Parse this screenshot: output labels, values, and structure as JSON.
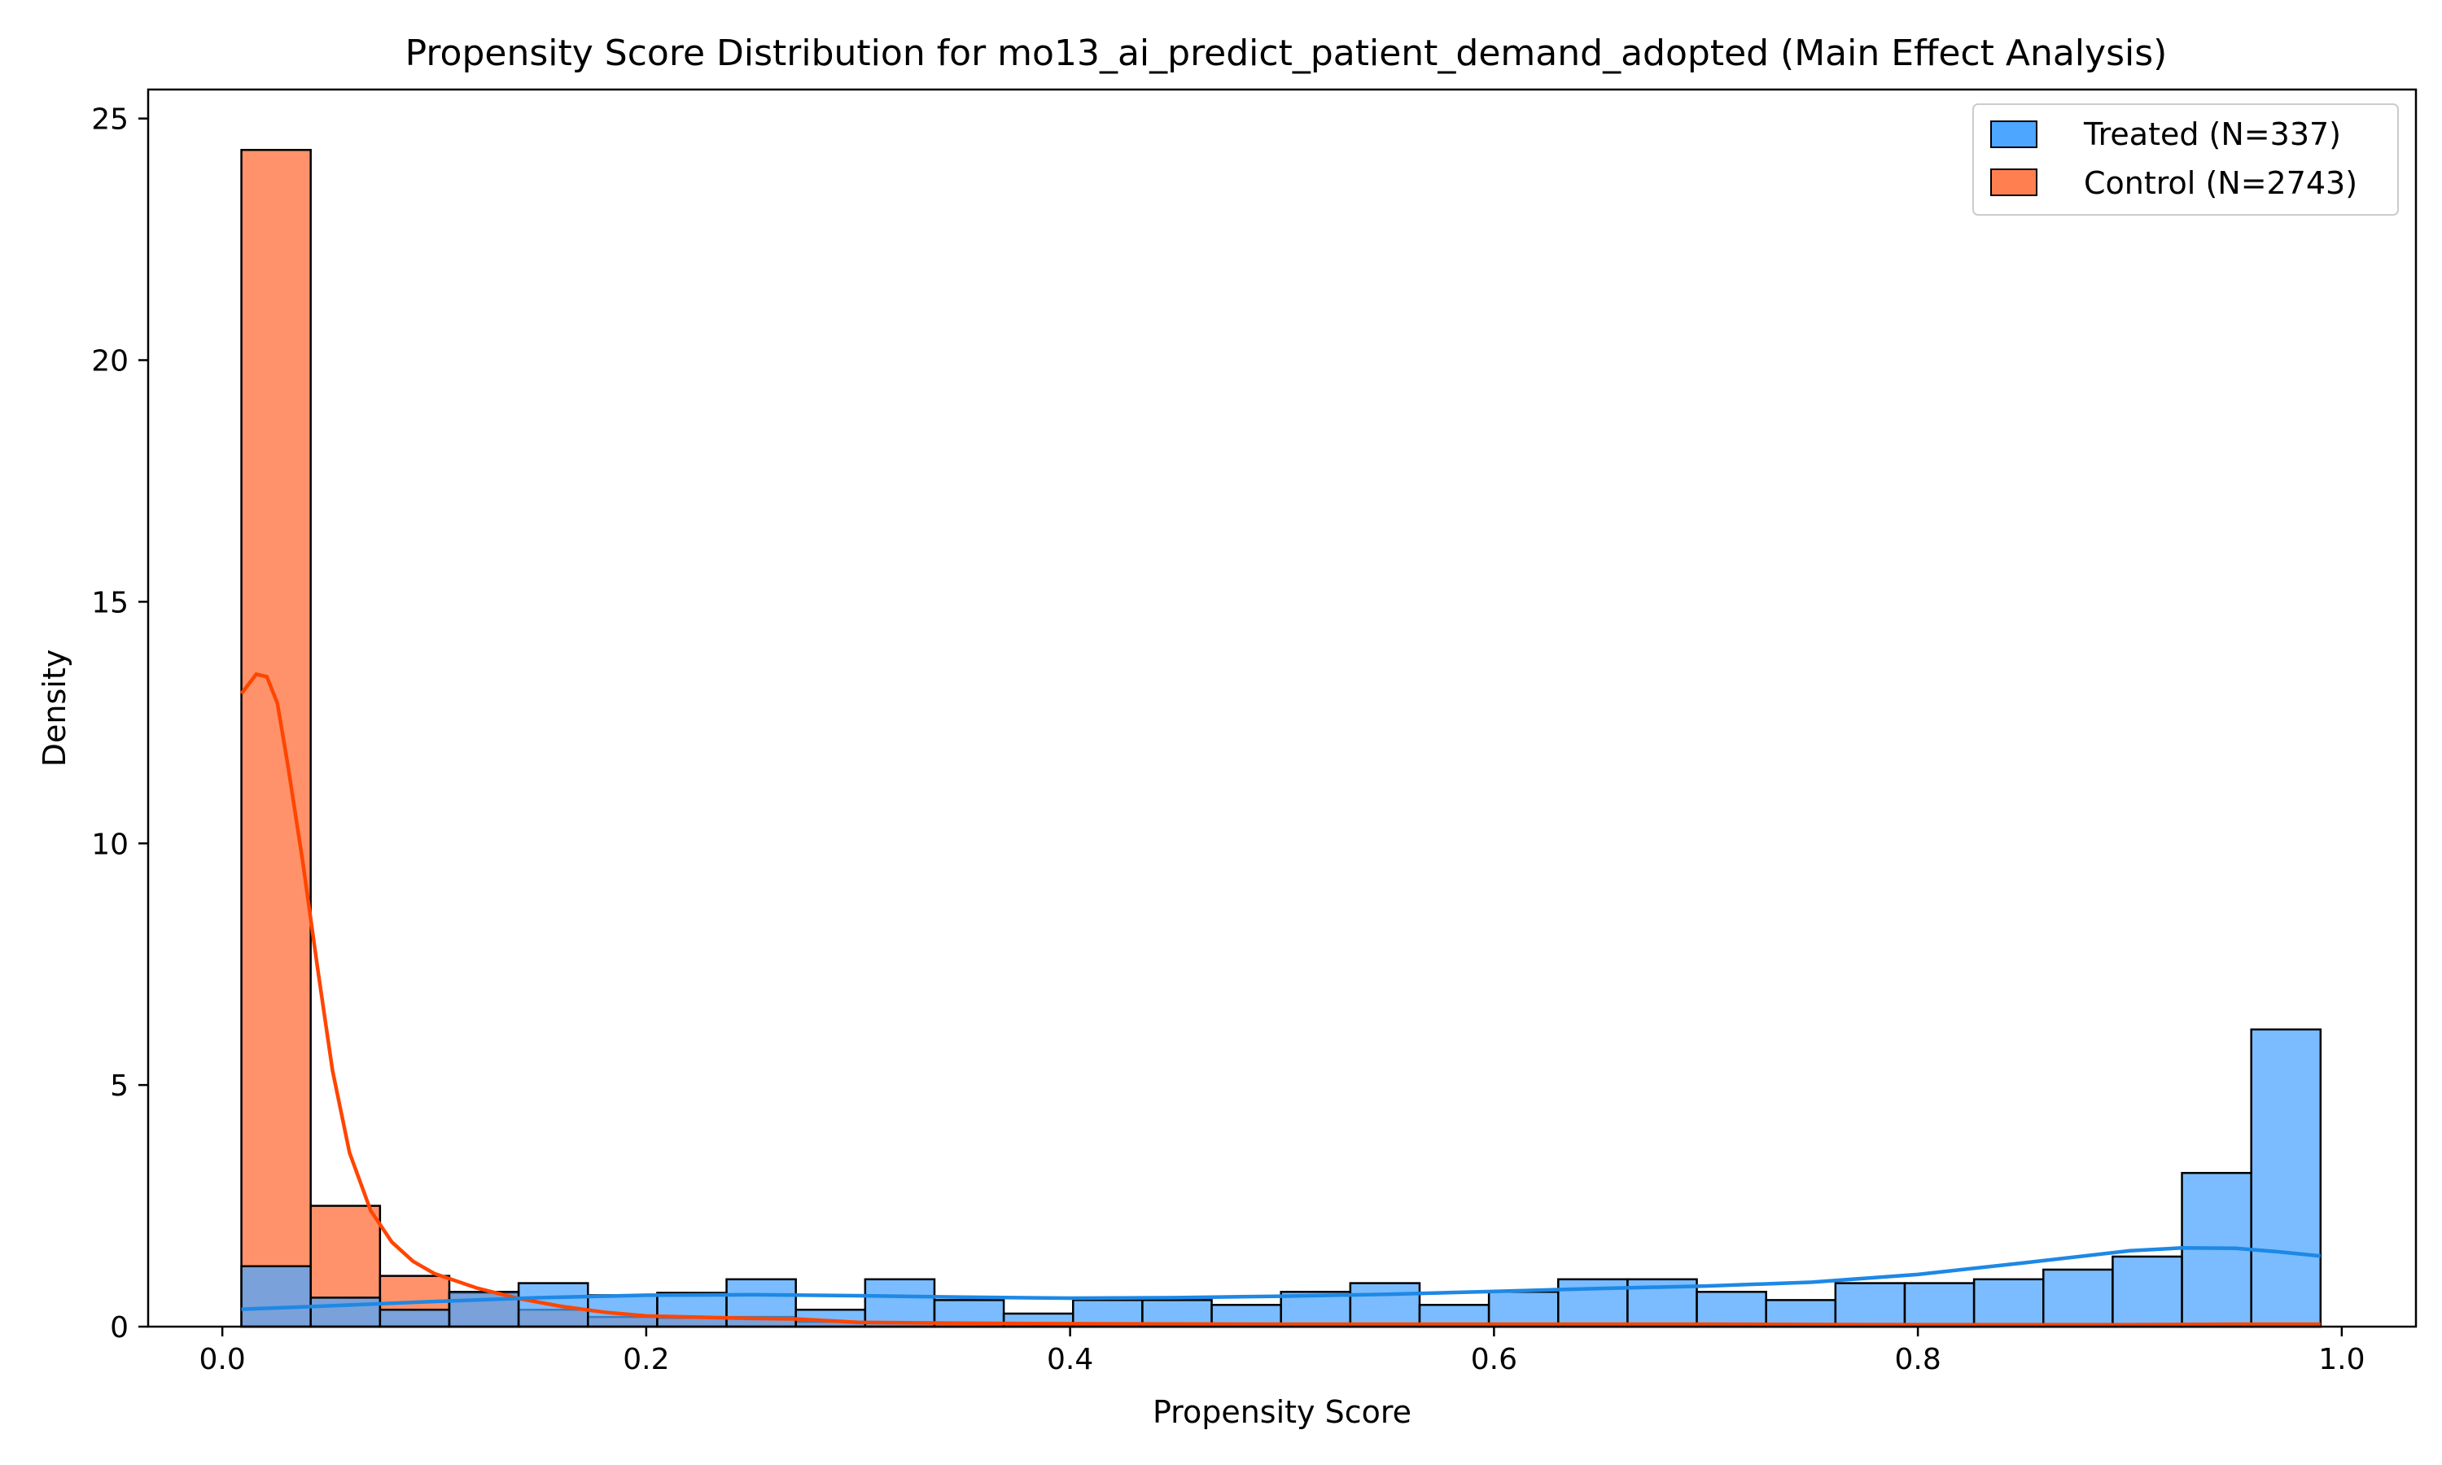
{
  "chart_data": {
    "type": "bar",
    "title": "Propensity Score Distribution for mo13_ai_predict_patient_demand_adopted (Main Effect Analysis)",
    "xlabel": "Propensity Score",
    "ylabel": "Density",
    "xlim": [
      -0.035,
      1.035
    ],
    "ylim": [
      0,
      25.6
    ],
    "xticks": [
      0.0,
      0.2,
      0.4,
      0.6,
      0.8,
      1.0
    ],
    "xtick_labels": [
      "0.0",
      "0.2",
      "0.4",
      "0.6",
      "0.8",
      "1.0"
    ],
    "yticks": [
      0,
      5,
      10,
      15,
      20,
      25
    ],
    "ytick_labels": [
      "0",
      "5",
      "10",
      "15",
      "20",
      "25"
    ],
    "grid": false,
    "legend_position": "top-right",
    "bin_edges": [
      0.009,
      0.0417,
      0.0744,
      0.1071,
      0.1398,
      0.1725,
      0.2052,
      0.2379,
      0.2706,
      0.3033,
      0.336,
      0.3687,
      0.4014,
      0.4341,
      0.4668,
      0.4995,
      0.5322,
      0.5649,
      0.5976,
      0.6303,
      0.663,
      0.6957,
      0.7284,
      0.7611,
      0.7938,
      0.8265,
      0.8592,
      0.8919,
      0.9246,
      0.9573,
      0.99
    ],
    "series": [
      {
        "name": "Control (N=2743)",
        "color": "#ff7f50",
        "kde_color": "#ff4500",
        "values": [
          24.35,
          2.5,
          1.05,
          0.7,
          0.35,
          0.2,
          0.18,
          0.2,
          0.1,
          0.08,
          0.06,
          0.06,
          0.05,
          0.05,
          0.05,
          0.04,
          0.04,
          0.04,
          0.04,
          0.03,
          0.03,
          0.03,
          0.03,
          0.03,
          0.03,
          0.03,
          0.03,
          0.03,
          0.03,
          0.03
        ],
        "kde": [
          [
            0.009,
            13.1
          ],
          [
            0.016,
            13.5
          ],
          [
            0.021,
            13.45
          ],
          [
            0.026,
            12.9
          ],
          [
            0.031,
            11.6
          ],
          [
            0.038,
            9.6
          ],
          [
            0.045,
            7.4
          ],
          [
            0.052,
            5.3
          ],
          [
            0.06,
            3.6
          ],
          [
            0.07,
            2.4
          ],
          [
            0.08,
            1.75
          ],
          [
            0.09,
            1.35
          ],
          [
            0.1,
            1.1
          ],
          [
            0.12,
            0.8
          ],
          [
            0.14,
            0.58
          ],
          [
            0.16,
            0.42
          ],
          [
            0.18,
            0.3
          ],
          [
            0.2,
            0.22
          ],
          [
            0.25,
            0.17
          ],
          [
            0.27,
            0.16
          ],
          [
            0.3,
            0.09
          ],
          [
            0.35,
            0.07
          ],
          [
            0.4,
            0.06
          ],
          [
            0.5,
            0.05
          ],
          [
            0.6,
            0.05
          ],
          [
            0.7,
            0.05
          ],
          [
            0.8,
            0.04
          ],
          [
            0.9,
            0.04
          ],
          [
            0.95,
            0.05
          ],
          [
            0.99,
            0.05
          ]
        ]
      },
      {
        "name": "Treated (N=337)",
        "color": "#4da6ff",
        "kde_color": "#1e88e5",
        "values": [
          1.25,
          0.6,
          0.35,
          0.72,
          0.9,
          0.65,
          0.7,
          0.98,
          0.35,
          0.98,
          0.55,
          0.27,
          0.55,
          0.55,
          0.45,
          0.72,
          0.9,
          0.45,
          0.72,
          0.98,
          0.98,
          0.72,
          0.55,
          0.9,
          0.9,
          0.98,
          1.18,
          1.45,
          3.18,
          6.15
        ],
        "kde": [
          [
            0.009,
            0.36
          ],
          [
            0.05,
            0.43
          ],
          [
            0.1,
            0.52
          ],
          [
            0.15,
            0.6
          ],
          [
            0.2,
            0.65
          ],
          [
            0.25,
            0.66
          ],
          [
            0.3,
            0.64
          ],
          [
            0.35,
            0.61
          ],
          [
            0.4,
            0.59
          ],
          [
            0.45,
            0.6
          ],
          [
            0.5,
            0.63
          ],
          [
            0.55,
            0.67
          ],
          [
            0.6,
            0.73
          ],
          [
            0.65,
            0.79
          ],
          [
            0.7,
            0.84
          ],
          [
            0.75,
            0.92
          ],
          [
            0.8,
            1.08
          ],
          [
            0.85,
            1.32
          ],
          [
            0.9,
            1.57
          ],
          [
            0.925,
            1.63
          ],
          [
            0.95,
            1.62
          ],
          [
            0.97,
            1.55
          ],
          [
            0.99,
            1.46
          ]
        ]
      }
    ],
    "legend": [
      {
        "label": "Treated (N=337)",
        "color": "#4da6ff"
      },
      {
        "label": "Control (N=2743)",
        "color": "#ff7f50"
      }
    ]
  }
}
